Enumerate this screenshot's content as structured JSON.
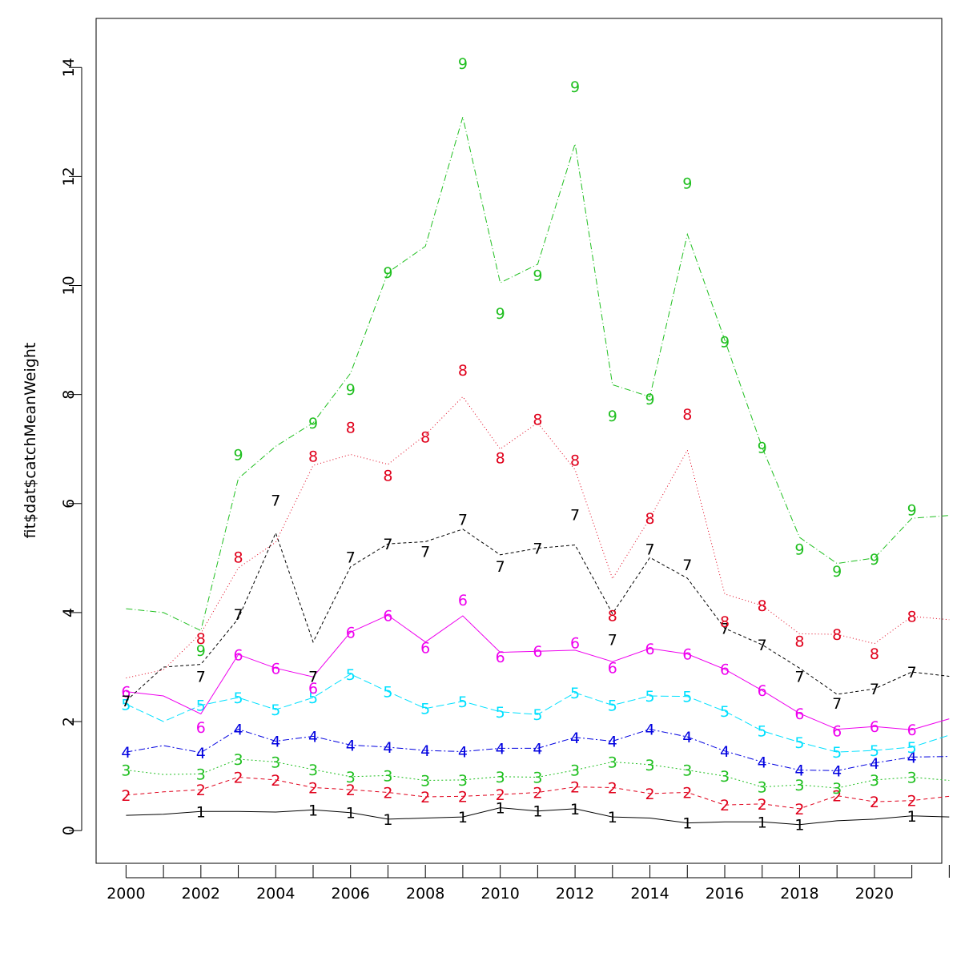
{
  "chart_data": {
    "type": "line",
    "title": "",
    "xlabel": "",
    "ylabel": "fit$dat$catchMeanWeight",
    "xlim": [
      1999.2,
      2021.8
    ],
    "ylim": [
      -0.6,
      14.9
    ],
    "grid": false,
    "legend": "none",
    "x_ticks": [
      2000,
      2002,
      2004,
      2006,
      2008,
      2010,
      2012,
      2014,
      2016,
      2018,
      2020
    ],
    "x_tick_labels": [
      "2000",
      "2002",
      "2004",
      "2006",
      "2008",
      "2010",
      "2012",
      "2014",
      "2016",
      "2018",
      "2020"
    ],
    "y_ticks": [
      0,
      2,
      4,
      6,
      8,
      10,
      12,
      14
    ],
    "y_tick_labels": [
      "0",
      "2",
      "4",
      "6",
      "8",
      "10",
      "12",
      "14"
    ],
    "years": [
      2000,
      2001,
      2002,
      2003,
      2004,
      2005,
      2006,
      2007,
      2008,
      2009,
      2010,
      2011,
      2012,
      2013,
      2014,
      2015,
      2016,
      2017,
      2018,
      2019,
      2020,
      2021,
      2022
    ],
    "series": [
      {
        "label": "1",
        "color": "#000000",
        "dash": "",
        "lines": [
          0.28,
          0.3,
          0.35,
          0.35,
          0.34,
          0.38,
          0.33,
          0.21,
          0.23,
          0.25,
          0.42,
          0.36,
          0.4,
          0.25,
          0.23,
          0.14,
          0.16,
          0.16,
          0.11,
          0.18,
          0.21,
          0.27,
          0.25
        ],
        "points": [
          null,
          null,
          0.35,
          null,
          null,
          0.38,
          0.33,
          0.21,
          null,
          0.25,
          0.42,
          0.36,
          0.4,
          0.25,
          null,
          0.14,
          null,
          0.16,
          0.11,
          null,
          null,
          0.27,
          null
        ]
      },
      {
        "label": "2",
        "color": "#e0001b",
        "dash": "5,4",
        "lines": [
          0.65,
          0.71,
          0.75,
          0.98,
          0.93,
          0.79,
          0.75,
          0.7,
          0.62,
          0.63,
          0.66,
          0.7,
          0.8,
          0.79,
          0.68,
          0.7,
          0.47,
          0.49,
          0.4,
          0.64,
          0.53,
          0.55,
          0.63
        ],
        "points": [
          0.65,
          null,
          0.75,
          0.98,
          0.93,
          0.79,
          0.75,
          0.7,
          0.62,
          0.63,
          0.66,
          0.7,
          0.8,
          0.79,
          0.68,
          0.7,
          0.47,
          0.49,
          0.4,
          0.64,
          0.53,
          0.55,
          null
        ]
      },
      {
        "label": "3",
        "color": "#1fbf1f",
        "dash": "2,3",
        "lines": [
          1.11,
          1.03,
          1.04,
          1.31,
          1.26,
          1.12,
          0.99,
          1.01,
          0.92,
          0.93,
          0.99,
          0.98,
          1.11,
          1.26,
          1.21,
          1.11,
          1.0,
          0.8,
          0.84,
          0.78,
          0.93,
          0.98,
          0.92
        ],
        "points": [
          1.11,
          null,
          1.04,
          1.31,
          1.26,
          1.12,
          0.99,
          1.01,
          0.92,
          0.93,
          0.99,
          0.98,
          1.11,
          1.26,
          1.21,
          1.11,
          1.0,
          0.8,
          0.84,
          0.78,
          0.93,
          0.98,
          null
        ]
      },
      {
        "label": "4",
        "color": "#0000e0",
        "dash": "8,3,2,3",
        "lines": [
          1.44,
          1.56,
          1.43,
          1.86,
          1.64,
          1.73,
          1.57,
          1.53,
          1.47,
          1.45,
          1.51,
          1.51,
          1.71,
          1.64,
          1.86,
          1.72,
          1.46,
          1.26,
          1.11,
          1.1,
          1.24,
          1.35,
          1.36
        ],
        "points": [
          1.44,
          null,
          1.43,
          1.86,
          1.64,
          1.73,
          1.57,
          1.53,
          1.47,
          1.45,
          1.51,
          1.51,
          1.71,
          1.64,
          1.86,
          1.72,
          1.46,
          1.26,
          1.11,
          1.1,
          1.24,
          1.35,
          null
        ]
      },
      {
        "label": "5",
        "color": "#00e0ff",
        "dash": "10,4",
        "lines": [
          2.32,
          2.0,
          2.3,
          2.44,
          2.22,
          2.44,
          2.87,
          2.55,
          2.24,
          2.37,
          2.18,
          2.13,
          2.53,
          2.3,
          2.47,
          2.46,
          2.19,
          1.83,
          1.62,
          1.44,
          1.47,
          1.53,
          1.75
        ],
        "points": [
          2.32,
          null,
          2.3,
          2.44,
          2.22,
          2.44,
          2.87,
          2.55,
          2.24,
          2.37,
          2.18,
          2.13,
          2.53,
          2.3,
          2.47,
          2.46,
          2.19,
          1.83,
          1.62,
          1.44,
          1.47,
          1.53,
          null
        ]
      },
      {
        "label": "6",
        "color": "#ee00ee",
        "dash": "",
        "lines": [
          2.55,
          2.47,
          2.14,
          3.23,
          2.98,
          2.82,
          3.64,
          3.95,
          3.46,
          3.94,
          3.27,
          3.29,
          3.31,
          3.1,
          3.34,
          3.24,
          2.96,
          2.57,
          2.15,
          1.86,
          1.91,
          1.85,
          2.05
        ],
        "points": [
          2.55,
          null,
          1.9,
          3.23,
          2.98,
          2.62,
          3.64,
          3.95,
          3.36,
          4.23,
          3.19,
          3.29,
          3.45,
          2.99,
          3.34,
          3.24,
          2.96,
          2.57,
          2.15,
          1.83,
          1.91,
          1.85,
          null
        ]
      },
      {
        "label": "7",
        "color": "#000000",
        "dash": "4,3",
        "lines": [
          2.38,
          3.0,
          3.05,
          3.89,
          5.46,
          3.46,
          4.84,
          5.26,
          5.3,
          5.53,
          5.06,
          5.18,
          5.24,
          3.98,
          5.01,
          4.63,
          3.71,
          3.41,
          2.98,
          2.5,
          2.6,
          2.91,
          2.83
        ],
        "points": [
          2.38,
          null,
          2.83,
          3.97,
          6.06,
          2.83,
          5.02,
          5.26,
          5.12,
          5.71,
          4.85,
          5.18,
          5.8,
          3.51,
          5.17,
          4.88,
          3.71,
          3.41,
          2.83,
          2.34,
          2.6,
          2.91,
          null
        ]
      },
      {
        "label": "8",
        "color": "#e0001b",
        "dash": "1,3",
        "lines": [
          2.8,
          2.95,
          3.62,
          4.82,
          5.29,
          6.7,
          6.9,
          6.72,
          7.26,
          7.96,
          7.0,
          7.48,
          6.62,
          4.62,
          5.73,
          6.98,
          4.34,
          4.13,
          3.61,
          3.6,
          3.43,
          3.93,
          3.87
        ],
        "points": [
          null,
          null,
          3.53,
          5.02,
          null,
          6.87,
          7.4,
          6.52,
          7.22,
          8.45,
          6.84,
          7.55,
          6.8,
          3.95,
          5.73,
          7.64,
          3.84,
          4.13,
          3.48,
          3.6,
          3.25,
          3.93,
          null
        ]
      },
      {
        "label": "9",
        "color": "#1fbf1f",
        "dash": "8,3,1,3",
        "lines": [
          4.07,
          4.0,
          3.67,
          6.46,
          7.05,
          7.48,
          8.39,
          10.24,
          10.72,
          13.09,
          10.05,
          10.39,
          12.6,
          8.18,
          7.96,
          10.94,
          9.0,
          7.03,
          5.38,
          4.9,
          5.0,
          5.73,
          5.78
        ],
        "points": [
          null,
          null,
          3.31,
          6.9,
          null,
          7.48,
          8.1,
          10.24,
          null,
          14.08,
          9.49,
          10.19,
          13.65,
          7.61,
          7.92,
          11.88,
          8.97,
          7.03,
          5.17,
          4.76,
          4.98,
          5.89,
          null
        ]
      }
    ]
  }
}
